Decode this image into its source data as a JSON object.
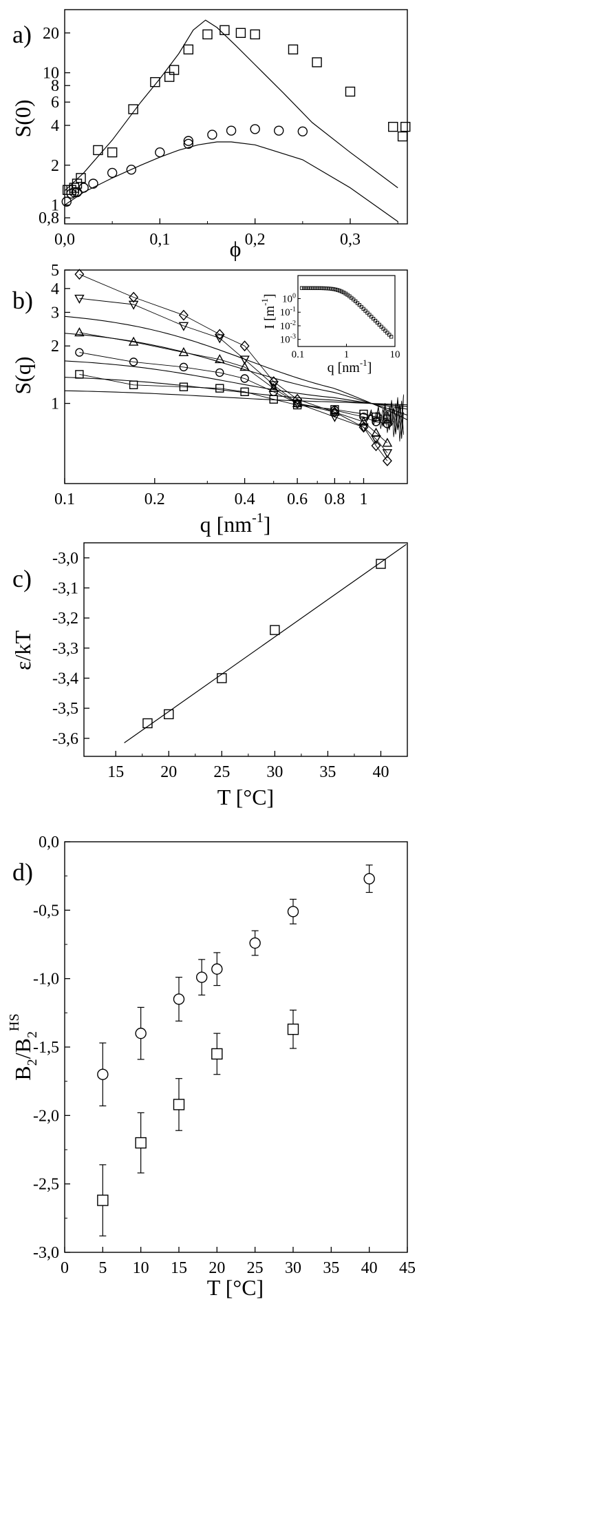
{
  "chart_data": [
    {
      "panel": "a)",
      "type": "scatter",
      "xlabel": "ϕ",
      "ylabel": "S(0)",
      "xscale": "linear",
      "yscale": "log",
      "xlim": [
        0.0,
        0.36
      ],
      "ylim": [
        0.72,
        30
      ],
      "xticks": [
        {
          "v": 0,
          "t": "0,0"
        },
        {
          "v": 0.1,
          "t": "0,1"
        },
        {
          "v": 0.2,
          "t": "0,2"
        },
        {
          "v": 0.3,
          "t": "0,3"
        }
      ],
      "yticks": [
        {
          "v": 0.8,
          "t": "0,8"
        },
        {
          "v": 1,
          "t": "1"
        },
        {
          "v": 2,
          "t": "2"
        },
        {
          "v": 4,
          "t": "4"
        },
        {
          "v": 6,
          "t": "6"
        },
        {
          "v": 8,
          "t": "8"
        },
        {
          "v": 10,
          "t": "10"
        },
        {
          "v": 20,
          "t": "20"
        }
      ],
      "series": [
        {
          "name": "squares",
          "marker": "square",
          "points": [
            [
              0.003,
              1.3
            ],
            [
              0.007,
              1.3
            ],
            [
              0.01,
              1.35
            ],
            [
              0.013,
              1.45
            ],
            [
              0.017,
              1.6
            ],
            [
              0.035,
              2.6
            ],
            [
              0.05,
              2.5
            ],
            [
              0.072,
              5.3
            ],
            [
              0.095,
              8.5
            ],
            [
              0.11,
              9.3
            ],
            [
              0.115,
              10.5
            ],
            [
              0.13,
              15
            ],
            [
              0.15,
              19.5
            ],
            [
              0.168,
              21
            ],
            [
              0.185,
              20
            ],
            [
              0.2,
              19.5
            ],
            [
              0.24,
              15
            ],
            [
              0.265,
              12
            ],
            [
              0.3,
              7.2
            ],
            [
              0.345,
              3.9
            ],
            [
              0.355,
              3.3
            ],
            [
              0.358,
              3.9
            ]
          ]
        },
        {
          "name": "circles",
          "marker": "circle",
          "points": [
            [
              0.002,
              1.06
            ],
            [
              0.007,
              1.22
            ],
            [
              0.01,
              1.25
            ],
            [
              0.013,
              1.25
            ],
            [
              0.02,
              1.35
            ],
            [
              0.03,
              1.45
            ],
            [
              0.05,
              1.75
            ],
            [
              0.07,
              1.85
            ],
            [
              0.1,
              2.5
            ],
            [
              0.13,
              2.9
            ],
            [
              0.13,
              3.05
            ],
            [
              0.155,
              3.4
            ],
            [
              0.175,
              3.65
            ],
            [
              0.2,
              3.75
            ],
            [
              0.225,
              3.65
            ],
            [
              0.25,
              3.6
            ]
          ]
        },
        {
          "name": "model-upper",
          "marker": "line",
          "points": [
            [
              0,
              1.28
            ],
            [
              0.02,
              1.75
            ],
            [
              0.05,
              3.1
            ],
            [
              0.08,
              6.0
            ],
            [
              0.1,
              9.0
            ],
            [
              0.12,
              14.0
            ],
            [
              0.135,
              21.0
            ],
            [
              0.148,
              25.0
            ],
            [
              0.16,
              22.0
            ],
            [
              0.18,
              16.0
            ],
            [
              0.2,
              11.5
            ],
            [
              0.23,
              7.0
            ],
            [
              0.26,
              4.2
            ],
            [
              0.3,
              2.5
            ],
            [
              0.35,
              1.35
            ]
          ]
        },
        {
          "name": "model-lower",
          "marker": "line",
          "points": [
            [
              0,
              1.0
            ],
            [
              0.02,
              1.25
            ],
            [
              0.05,
              1.6
            ],
            [
              0.08,
              2.0
            ],
            [
              0.1,
              2.3
            ],
            [
              0.12,
              2.6
            ],
            [
              0.14,
              2.85
            ],
            [
              0.16,
              3.0
            ],
            [
              0.175,
              3.0
            ],
            [
              0.2,
              2.85
            ],
            [
              0.25,
              2.2
            ],
            [
              0.3,
              1.35
            ],
            [
              0.35,
              0.75
            ]
          ]
        }
      ]
    },
    {
      "panel": "b)",
      "type": "line",
      "xlabel": "q [nm",
      "xlabel_sup": "-1",
      "xlabel_end": "]",
      "ylabel": "S(q)",
      "xscale": "log",
      "yscale": "log",
      "xlim": [
        0.1,
        1.4
      ],
      "ylim": [
        0.38,
        5.0
      ],
      "xticks": [
        {
          "v": 0.1,
          "t": "0.1"
        },
        {
          "v": 0.2,
          "t": "0.2"
        },
        {
          "v": 0.4,
          "t": "0.4"
        },
        {
          "v": 0.6,
          "t": "0.6"
        },
        {
          "v": 0.8,
          "t": "0.8"
        },
        {
          "v": 1.0,
          "t": "1"
        }
      ],
      "yticks": [
        {
          "v": 1,
          "t": "1"
        },
        {
          "v": 2,
          "t": "2"
        },
        {
          "v": 3,
          "t": "3"
        },
        {
          "v": 4,
          "t": "4"
        },
        {
          "v": 5,
          "t": "5"
        }
      ],
      "series": [
        {
          "name": "diamond",
          "marker": "diamond",
          "fitS0": 3.95,
          "points": [
            [
              0.112,
              4.75
            ],
            [
              0.17,
              3.6
            ],
            [
              0.25,
              2.9
            ],
            [
              0.33,
              2.3
            ],
            [
              0.4,
              2.0
            ],
            [
              0.5,
              1.3
            ],
            [
              0.6,
              1.05
            ],
            [
              0.8,
              0.9
            ],
            [
              1.0,
              0.75
            ],
            [
              1.1,
              0.6
            ],
            [
              1.2,
              0.5
            ]
          ]
        },
        {
          "name": "triangle-down",
          "marker": "tri-down",
          "fitS0": 3.15,
          "points": [
            [
              0.112,
              3.55
            ],
            [
              0.17,
              3.3
            ],
            [
              0.25,
              2.55
            ],
            [
              0.33,
              2.2
            ],
            [
              0.4,
              1.7
            ],
            [
              0.5,
              1.25
            ],
            [
              0.6,
              1.0
            ],
            [
              0.8,
              0.85
            ],
            [
              1.0,
              0.75
            ],
            [
              1.1,
              0.65
            ],
            [
              1.2,
              0.55
            ]
          ]
        },
        {
          "name": "triangle-up",
          "marker": "tri-up",
          "fitS0": 2.1,
          "points": [
            [
              0.112,
              2.35
            ],
            [
              0.17,
              2.1
            ],
            [
              0.25,
              1.85
            ],
            [
              0.33,
              1.7
            ],
            [
              0.4,
              1.55
            ],
            [
              0.5,
              1.2
            ],
            [
              0.6,
              1.0
            ],
            [
              0.8,
              0.9
            ],
            [
              1.0,
              0.8
            ],
            [
              1.1,
              0.7
            ],
            [
              1.2,
              0.62
            ]
          ]
        },
        {
          "name": "circle",
          "marker": "circle",
          "fitS0": 1.62,
          "points": [
            [
              0.112,
              1.85
            ],
            [
              0.17,
              1.65
            ],
            [
              0.25,
              1.55
            ],
            [
              0.33,
              1.45
            ],
            [
              0.4,
              1.35
            ],
            [
              0.5,
              1.15
            ],
            [
              0.6,
              1.0
            ],
            [
              0.8,
              0.92
            ],
            [
              1.0,
              0.85
            ],
            [
              1.1,
              0.8
            ],
            [
              1.2,
              0.78
            ]
          ]
        },
        {
          "name": "square",
          "marker": "square",
          "fitS0": 1.28,
          "points": [
            [
              0.112,
              1.42
            ],
            [
              0.17,
              1.25
            ],
            [
              0.25,
              1.22
            ],
            [
              0.33,
              1.2
            ],
            [
              0.4,
              1.15
            ],
            [
              0.5,
              1.05
            ],
            [
              0.6,
              0.98
            ],
            [
              0.8,
              0.93
            ],
            [
              1.0,
              0.88
            ],
            [
              1.1,
              0.85
            ],
            [
              1.2,
              0.83
            ]
          ]
        }
      ],
      "inset": {
        "xlabel": "q [nm",
        "xlabel_sup": "-1",
        "xlabel_end": "]",
        "ylabel": "I [m",
        "ylabel_sup": "-1",
        "ylabel_end": "]",
        "xscale": "log",
        "yscale": "log",
        "xlim": [
          0.1,
          10
        ],
        "ylim": [
          0.0003,
          50
        ],
        "xticks": [
          {
            "v": 0.1,
            "t": "0.1"
          },
          {
            "v": 1,
            "t": "1"
          },
          {
            "v": 10,
            "t": "10"
          }
        ],
        "yticks": [
          {
            "v": 1,
            "e": "0"
          },
          {
            "v": 0.1,
            "e": "-1"
          },
          {
            "v": 0.01,
            "e": "-2"
          },
          {
            "v": 0.001,
            "e": "-3"
          }
        ],
        "y_base": "10",
        "curve": {
          "I0": 6.0,
          "qc": 0.85
        }
      }
    },
    {
      "panel": "c)",
      "type": "scatter",
      "xlabel": "T [°C]",
      "ylabel": "ε/kT",
      "xlim": [
        12,
        42.5
      ],
      "ylim": [
        -3.66,
        -2.95
      ],
      "xticks": [
        {
          "v": 15,
          "t": "15"
        },
        {
          "v": 20,
          "t": "20"
        },
        {
          "v": 25,
          "t": "25"
        },
        {
          "v": 30,
          "t": "30"
        },
        {
          "v": 35,
          "t": "35"
        },
        {
          "v": 40,
          "t": "40"
        }
      ],
      "yticks": [
        {
          "v": -3.0,
          "t": "-3,0"
        },
        {
          "v": -3.1,
          "t": "-3,1"
        },
        {
          "v": -3.2,
          "t": "-3,2"
        },
        {
          "v": -3.3,
          "t": "-3,3"
        },
        {
          "v": -3.4,
          "t": "-3,4"
        },
        {
          "v": -3.5,
          "t": "-3,5"
        },
        {
          "v": -3.6,
          "t": "-3,6"
        }
      ],
      "series": [
        {
          "name": "data",
          "marker": "square",
          "points": [
            [
              18,
              -3.55
            ],
            [
              20,
              -3.52
            ],
            [
              25,
              -3.4
            ],
            [
              30,
              -3.24
            ],
            [
              40,
              -3.02
            ]
          ]
        },
        {
          "name": "fit",
          "marker": "line",
          "points": [
            [
              15.8,
              -3.615
            ],
            [
              42.4,
              -2.955
            ]
          ]
        }
      ]
    },
    {
      "panel": "d)",
      "type": "scatter",
      "xlabel": "T [°C]",
      "ylabel": "B",
      "ylabel_sub1": "2",
      "ylabel_mid": "/B",
      "ylabel_sub2": "2",
      "ylabel_sup": "HS",
      "xlim": [
        0,
        45
      ],
      "ylim": [
        -3.0,
        0.0
      ],
      "xticks": [
        {
          "v": 0,
          "t": "0"
        },
        {
          "v": 5,
          "t": "5"
        },
        {
          "v": 10,
          "t": "10"
        },
        {
          "v": 15,
          "t": "15"
        },
        {
          "v": 20,
          "t": "20"
        },
        {
          "v": 25,
          "t": "25"
        },
        {
          "v": 30,
          "t": "30"
        },
        {
          "v": 35,
          "t": "35"
        },
        {
          "v": 40,
          "t": "40"
        },
        {
          "v": 45,
          "t": "45"
        }
      ],
      "yticks": [
        {
          "v": 0.0,
          "t": "0,0"
        },
        {
          "v": -0.5,
          "t": "-0,5"
        },
        {
          "v": -1.0,
          "t": "-1,0"
        },
        {
          "v": -1.5,
          "t": "-1,5"
        },
        {
          "v": -2.0,
          "t": "-2,0"
        },
        {
          "v": -2.5,
          "t": "-2,5"
        },
        {
          "v": -3.0,
          "t": "-3,0"
        }
      ],
      "series": [
        {
          "name": "circles",
          "marker": "circle",
          "points": [
            [
              5,
              -1.7,
              0.23
            ],
            [
              10,
              -1.4,
              0.19
            ],
            [
              15,
              -1.15,
              0.16
            ],
            [
              18,
              -0.99,
              0.13
            ],
            [
              20,
              -0.93,
              0.12
            ],
            [
              25,
              -0.74,
              0.09
            ],
            [
              30,
              -0.51,
              0.09
            ],
            [
              40,
              -0.27,
              0.1
            ]
          ]
        },
        {
          "name": "squares",
          "marker": "square",
          "points": [
            [
              5,
              -2.62,
              0.26
            ],
            [
              10,
              -2.2,
              0.22
            ],
            [
              15,
              -1.92,
              0.19
            ],
            [
              20,
              -1.55,
              0.15
            ],
            [
              30,
              -1.37,
              0.14
            ]
          ]
        }
      ]
    }
  ]
}
